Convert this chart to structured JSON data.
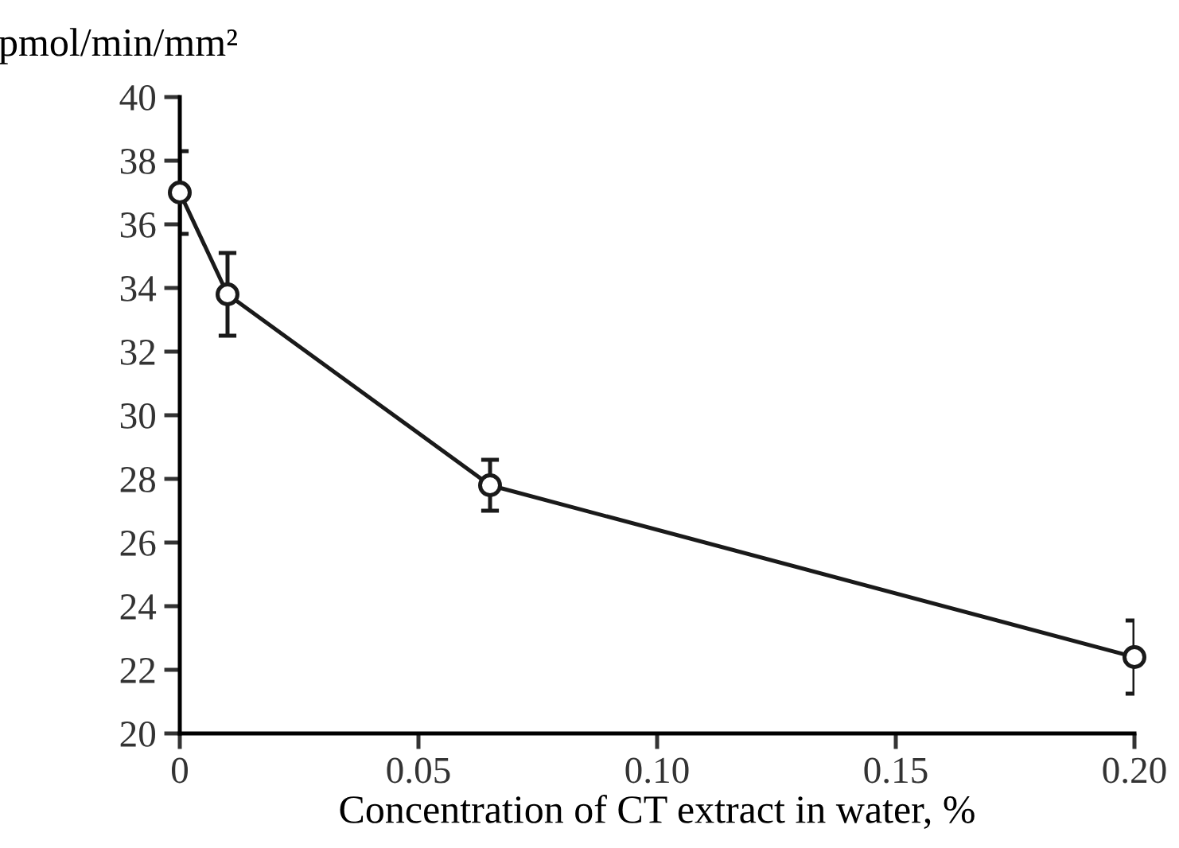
{
  "chart_data": {
    "type": "line",
    "ylabel": "pmol/min/mm²",
    "xlabel": "Concentration of CT extract in water, %",
    "x": [
      0,
      0.01,
      0.065,
      0.2
    ],
    "series": [
      {
        "color": "#1a1a1a",
        "values": [
          37.0,
          33.8,
          27.8,
          22.4
        ],
        "errors": [
          1.3,
          1.3,
          0.8,
          1.15
        ]
      }
    ],
    "xlim": [
      0,
      0.2
    ],
    "xticks": [
      0,
      {
        "value": 0.05,
        "label": "0.05"
      },
      {
        "value": 0.1,
        "label": "0.10"
      },
      {
        "value": 0.15,
        "label": "0.15"
      },
      {
        "value": 0.2,
        "label": "0.20"
      }
    ],
    "ylim": [
      20,
      40
    ],
    "yticks": [
      20,
      22,
      24,
      26,
      28,
      30,
      32,
      34,
      36,
      38,
      40
    ],
    "marker": "circle",
    "line_style": "solid",
    "grid": false,
    "legend": false
  }
}
